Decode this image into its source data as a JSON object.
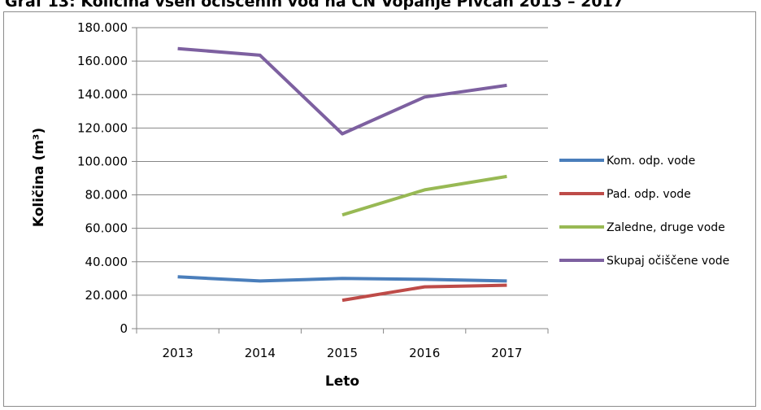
{
  "page_title": "Graf 13: Količina vseh očiščenih vod na ČN Vopanje Pivčan 2013 – 2017",
  "chart_data": {
    "type": "line",
    "categories": [
      "2013",
      "2014",
      "2015",
      "2016",
      "2017"
    ],
    "series": [
      {
        "name": "Kom. odp. vode",
        "color": "#4a7ebb",
        "values": [
          31000,
          28500,
          30000,
          29500,
          28500
        ]
      },
      {
        "name": "Pad. odp. vode",
        "color": "#be4b48",
        "values": [
          null,
          null,
          17000,
          25000,
          26000
        ]
      },
      {
        "name": "Zaledne, druge vode",
        "color": "#98b954",
        "values": [
          null,
          null,
          68000,
          83000,
          91000
        ]
      },
      {
        "name": "Skupaj očiščene vode",
        "color": "#7d60a0",
        "values": [
          167500,
          163500,
          116500,
          138500,
          145500
        ]
      }
    ],
    "ylim": [
      0,
      180000
    ],
    "yticks": [
      "0",
      "20.000",
      "40.000",
      "60.000",
      "80.000",
      "100.000",
      "120.000",
      "140.000",
      "160.000",
      "180.000"
    ],
    "xlabel": "Leto",
    "ylabel": "Količina (m³)",
    "grid": true,
    "legend": "right"
  }
}
